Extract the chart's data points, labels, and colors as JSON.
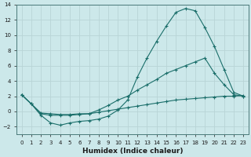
{
  "xlabel": "Humidex (Indice chaleur)",
  "bg_color": "#cce8ea",
  "line_color": "#1a6e6a",
  "grid_color": "#b8d4d6",
  "x_ticks": [
    0,
    1,
    2,
    3,
    4,
    5,
    6,
    7,
    8,
    9,
    10,
    11,
    12,
    13,
    14,
    15,
    16,
    17,
    18,
    19,
    20,
    21,
    22,
    23
  ],
  "ylim": [
    -3,
    14
  ],
  "xlim": [
    -0.5,
    23.5
  ],
  "curve1_x": [
    0,
    1,
    2,
    3,
    4,
    5,
    6,
    7,
    8,
    9,
    10,
    11,
    12,
    13,
    14,
    15,
    16,
    17,
    18,
    19,
    20,
    21,
    22,
    23
  ],
  "curve1_y": [
    2.2,
    1.0,
    -0.5,
    -1.5,
    -1.8,
    -1.5,
    -1.3,
    -1.2,
    -1.0,
    -0.6,
    0.2,
    1.5,
    4.5,
    7.0,
    9.2,
    11.2,
    13.0,
    13.5,
    13.2,
    11.0,
    8.5,
    5.5,
    2.5,
    2.0
  ],
  "curve2_x": [
    0,
    1,
    2,
    3,
    4,
    5,
    6,
    7,
    8,
    9,
    10,
    11,
    12,
    13,
    14,
    15,
    16,
    17,
    18,
    19,
    20,
    21,
    22,
    23
  ],
  "curve2_y": [
    2.2,
    1.0,
    -0.3,
    -0.5,
    -0.5,
    -0.5,
    -0.4,
    -0.3,
    0.2,
    0.8,
    1.5,
    2.0,
    2.8,
    3.5,
    4.2,
    5.0,
    5.5,
    6.0,
    6.5,
    7.0,
    5.0,
    3.5,
    2.2,
    2.0
  ],
  "curve3_x": [
    0,
    1,
    2,
    3,
    4,
    5,
    6,
    7,
    8,
    9,
    10,
    11,
    12,
    13,
    14,
    15,
    16,
    17,
    18,
    19,
    20,
    21,
    22,
    23
  ],
  "curve3_y": [
    2.2,
    1.0,
    -0.2,
    -0.3,
    -0.4,
    -0.4,
    -0.3,
    -0.3,
    -0.1,
    0.1,
    0.3,
    0.5,
    0.7,
    0.9,
    1.1,
    1.3,
    1.5,
    1.6,
    1.7,
    1.8,
    1.9,
    2.0,
    2.0,
    2.1
  ]
}
